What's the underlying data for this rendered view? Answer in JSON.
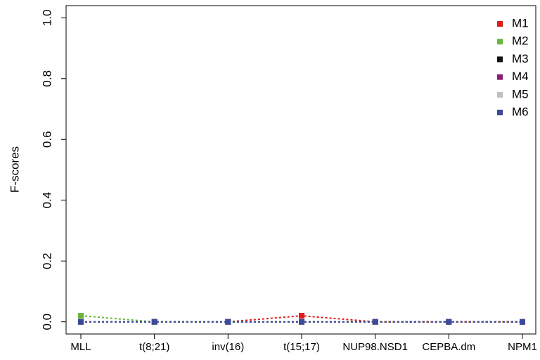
{
  "chart_data": {
    "type": "line",
    "ylabel": "F-scores",
    "categories": [
      "MLL",
      "t(8;21)",
      "inv(16)",
      "t(15;17)",
      "NUP98.NSD1",
      "CEPBA.dm",
      "NPM1"
    ],
    "series": [
      {
        "name": "M1",
        "color": "#e31a1c",
        "values": [
          0,
          0,
          0,
          0.02,
          0,
          0,
          0
        ]
      },
      {
        "name": "M2",
        "color": "#6ab539",
        "values": [
          0.02,
          0,
          0,
          0,
          0,
          0,
          0
        ]
      },
      {
        "name": "M3",
        "color": "#111111",
        "values": [
          0,
          0,
          0,
          0,
          0,
          0,
          0
        ]
      },
      {
        "name": "M4",
        "color": "#8b1a7a",
        "values": [
          0,
          0,
          0,
          0,
          0,
          0,
          0
        ]
      },
      {
        "name": "M5",
        "color": "#c0c0c0",
        "values": [
          0,
          0,
          0,
          0,
          0,
          0,
          0
        ]
      },
      {
        "name": "M6",
        "color": "#3b4a9a",
        "values": [
          0,
          0,
          0,
          0,
          0,
          0,
          0
        ]
      }
    ],
    "ylim": [
      -0.04,
      1.04
    ],
    "yticks": [
      {
        "value": 0,
        "label": "0.0"
      },
      0.2,
      0.4,
      0.6,
      0.8,
      {
        "value": 1,
        "label": "1.0"
      }
    ],
    "legend": "top-right"
  }
}
